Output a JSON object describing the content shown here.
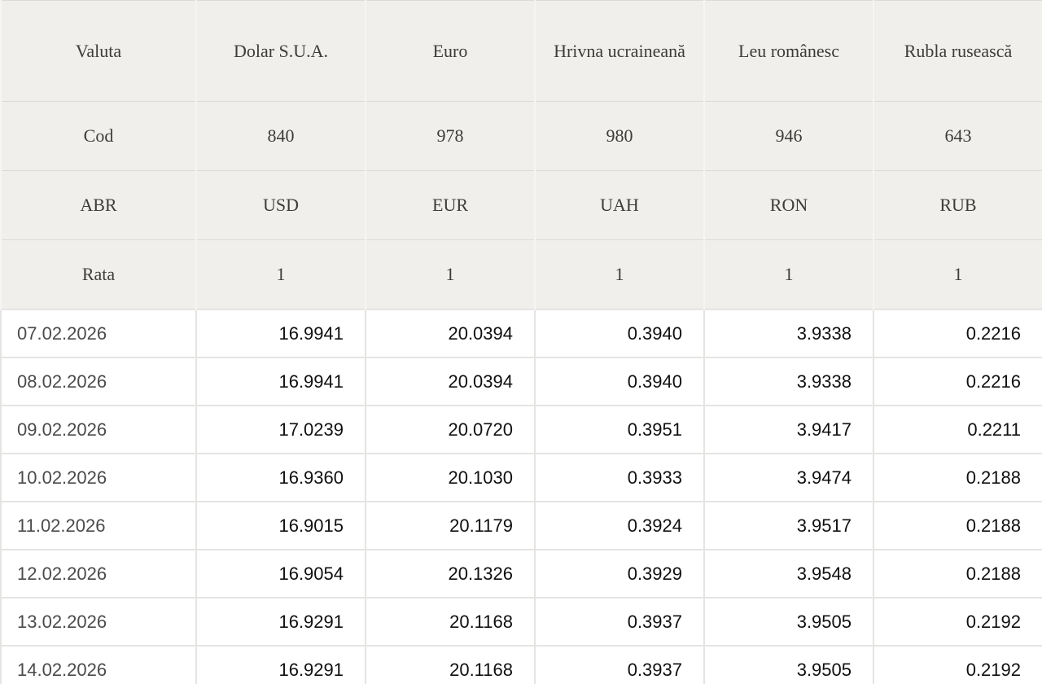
{
  "colors": {
    "header_bg": "#f0efec",
    "header_text": "#3e3c3a",
    "date_text": "#4b4b4b",
    "value_text": "#101010",
    "data_border": "#e5e4e2",
    "header_border_horizontal": "#dcdad7",
    "header_border_vertical": "#f7f5f3",
    "bottom_strip": "#edebe8"
  },
  "table": {
    "meta_rows": [
      {
        "label": "Valuta",
        "values": [
          "Dolar S.U.A.",
          "Euro",
          "Hrivna ucraineană",
          "Leu românesc",
          "Rubla rusească"
        ]
      },
      {
        "label": "Cod",
        "values": [
          "840",
          "978",
          "980",
          "946",
          "643"
        ]
      },
      {
        "label": "ABR",
        "values": [
          "USD",
          "EUR",
          "UAH",
          "RON",
          "RUB"
        ]
      },
      {
        "label": "Rata",
        "values": [
          "1",
          "1",
          "1",
          "1",
          "1"
        ]
      }
    ],
    "data_rows": [
      {
        "date": "07.02.2026",
        "values": [
          "16.9941",
          "20.0394",
          "0.3940",
          "3.9338",
          "0.2216"
        ]
      },
      {
        "date": "08.02.2026",
        "values": [
          "16.9941",
          "20.0394",
          "0.3940",
          "3.9338",
          "0.2216"
        ]
      },
      {
        "date": "09.02.2026",
        "values": [
          "17.0239",
          "20.0720",
          "0.3951",
          "3.9417",
          "0.2211"
        ]
      },
      {
        "date": "10.02.2026",
        "values": [
          "16.9360",
          "20.1030",
          "0.3933",
          "3.9474",
          "0.2188"
        ]
      },
      {
        "date": "11.02.2026",
        "values": [
          "16.9015",
          "20.1179",
          "0.3924",
          "3.9517",
          "0.2188"
        ]
      },
      {
        "date": "12.02.2026",
        "values": [
          "16.9054",
          "20.1326",
          "0.3929",
          "3.9548",
          "0.2188"
        ]
      },
      {
        "date": "13.02.2026",
        "values": [
          "16.9291",
          "20.1168",
          "0.3937",
          "3.9505",
          "0.2192"
        ]
      },
      {
        "date": "14.02.2026",
        "values": [
          "16.9291",
          "20.1168",
          "0.3937",
          "3.9505",
          "0.2192"
        ]
      }
    ]
  },
  "chart_data": {
    "type": "table",
    "title": "Currency exchange rates (Valuta)",
    "columns": [
      "Valuta",
      "Dolar S.U.A.",
      "Euro",
      "Hrivna ucraineană",
      "Leu românesc",
      "Rubla rusească"
    ],
    "codes": [
      840,
      978,
      980,
      946,
      643
    ],
    "abbreviations": [
      "USD",
      "EUR",
      "UAH",
      "RON",
      "RUB"
    ],
    "rate_base": [
      1,
      1,
      1,
      1,
      1
    ],
    "rows": [
      [
        "07.02.2026",
        16.9941,
        20.0394,
        0.394,
        3.9338,
        0.2216
      ],
      [
        "08.02.2026",
        16.9941,
        20.0394,
        0.394,
        3.9338,
        0.2216
      ],
      [
        "09.02.2026",
        17.0239,
        20.072,
        0.3951,
        3.9417,
        0.2211
      ],
      [
        "10.02.2026",
        16.936,
        20.103,
        0.3933,
        3.9474,
        0.2188
      ],
      [
        "11.02.2026",
        16.9015,
        20.1179,
        0.3924,
        3.9517,
        0.2188
      ],
      [
        "12.02.2026",
        16.9054,
        20.1326,
        0.3929,
        3.9548,
        0.2188
      ],
      [
        "13.02.2026",
        16.9291,
        20.1168,
        0.3937,
        3.9505,
        0.2192
      ],
      [
        "14.02.2026",
        16.9291,
        20.1168,
        0.3937,
        3.9505,
        0.2192
      ]
    ]
  }
}
